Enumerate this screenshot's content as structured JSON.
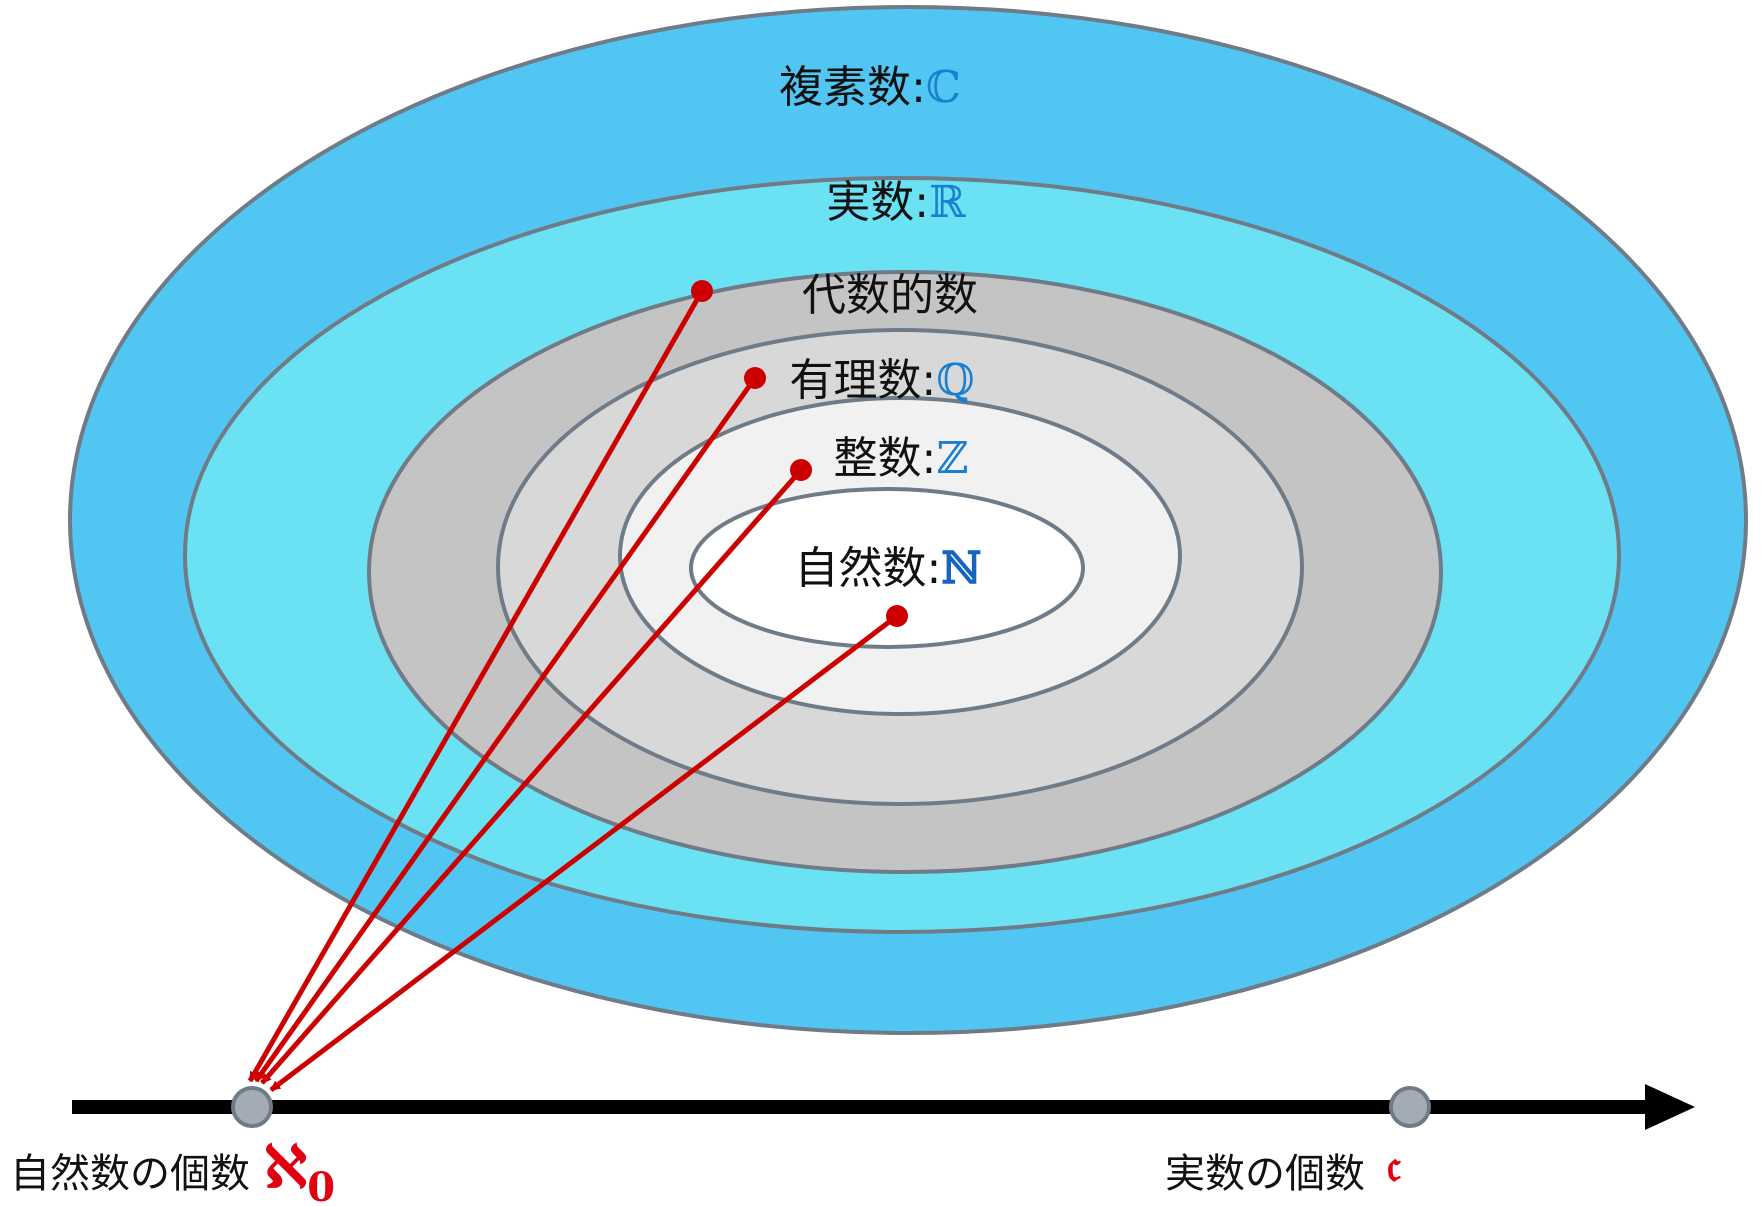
{
  "sets": [
    {
      "id": "complex",
      "name": "複素数",
      "sep": ":",
      "symbol": "ℂ",
      "fill": "#52c6f2",
      "symbol_color": "#1a7fd0"
    },
    {
      "id": "real",
      "name": "実数",
      "sep": ":",
      "symbol": "ℝ",
      "fill": "#6ae2f4",
      "symbol_color": "#1a7fd0"
    },
    {
      "id": "algebraic",
      "name": "代数的数",
      "sep": "",
      "symbol": "",
      "fill": "#c4c4c4",
      "symbol_color": "#1a7fd0"
    },
    {
      "id": "rational",
      "name": "有理数",
      "sep": ":",
      "symbol": "ℚ",
      "fill": "#d8d8d8",
      "symbol_color": "#1a7fd0"
    },
    {
      "id": "integer",
      "name": "整数",
      "sep": ":",
      "symbol": "ℤ",
      "fill": "#f1f1f1",
      "symbol_color": "#1a7fd0"
    },
    {
      "id": "natural",
      "name": "自然数",
      "sep": ":",
      "symbol": "ℕ",
      "fill": "#ffffff",
      "symbol_color": "#1565c0"
    }
  ],
  "axis": {
    "points": [
      {
        "id": "aleph0",
        "label": "自然数の個数",
        "cardinal": "ℵ",
        "subscript": "0"
      },
      {
        "id": "continuum",
        "label": "実数の個数",
        "cardinal": "𝔠",
        "subscript": ""
      }
    ]
  },
  "mappings": [
    {
      "from": "algebraic",
      "to": "aleph0"
    },
    {
      "from": "rational",
      "to": "aleph0"
    },
    {
      "from": "integer",
      "to": "aleph0"
    },
    {
      "from": "natural",
      "to": "aleph0"
    }
  ],
  "colors": {
    "ellipse_stroke": "#6f7b86",
    "arrow": "#cc0000",
    "axis": "#000000",
    "point_fill": "#a3acb6",
    "point_stroke": "#6f7b86",
    "cardinal": "#e0000f"
  }
}
